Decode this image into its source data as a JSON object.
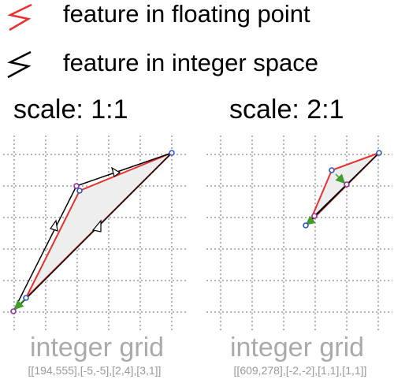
{
  "legend": {
    "floating": {
      "label": "feature in floating point",
      "color": "#e8312f",
      "icon": "zigzag-line-icon"
    },
    "integer": {
      "label": "feature in integer space",
      "color": "#000000",
      "icon": "zigzag-line-icon"
    }
  },
  "left_panel": {
    "title": "scale: 1:1",
    "grid_label": "integer grid",
    "caption": "[[194,555],[-5,-5],[2,4],[3,1]]"
  },
  "right_panel": {
    "title": "scale: 2:1",
    "grid_label": "integer grid",
    "caption": "[[609,278],[-2,-2],[1,1],[1,1]]"
  },
  "colors": {
    "grid": "#8a8a8a",
    "fill": "#eeeeee",
    "floating_stroke": "#e8312f",
    "integer_stroke": "#000000",
    "vertex_blue": "#2b57c9",
    "vertex_purple": "#9b2e9e",
    "offset_arrow": "#3f9f2a"
  }
}
